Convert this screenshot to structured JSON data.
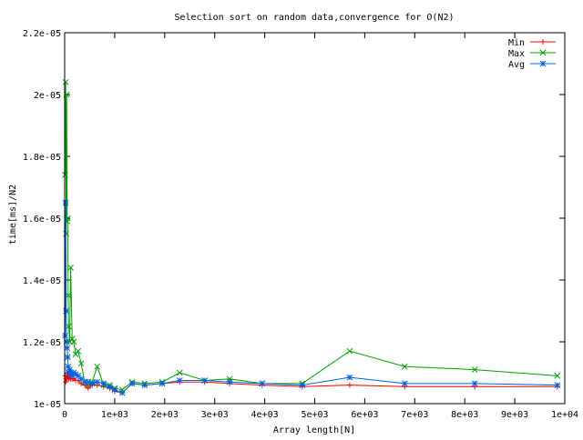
{
  "chart_data": {
    "type": "line",
    "title": "Selection sort on random data,convergence for O(N2)",
    "xlabel": "Array length[N]",
    "ylabel": "time[ms]/N2",
    "xlim": [
      0,
      10000
    ],
    "ylim": [
      1e-05,
      2.2e-05
    ],
    "xticks": [
      0,
      1000,
      2000,
      3000,
      4000,
      5000,
      6000,
      7000,
      8000,
      9000,
      10000
    ],
    "xtick_labels": [
      "0",
      "1e+03",
      "2e+03",
      "3e+03",
      "4e+03",
      "5e+03",
      "6e+03",
      "7e+03",
      "8e+03",
      "9e+03",
      "1e+04"
    ],
    "yticks": [
      1e-05,
      1.2e-05,
      1.4e-05,
      1.6e-05,
      1.8e-05,
      2e-05,
      2.2e-05
    ],
    "ytick_labels": [
      "1e-05",
      "1.2e-05",
      "1.4e-05",
      "1.6e-05",
      "1.8e-05",
      "2e-05",
      "2.2e-05"
    ],
    "grid": false,
    "legend_position": "top-right",
    "x": [
      10,
      20,
      30,
      40,
      50,
      60,
      70,
      80,
      100,
      120,
      150,
      180,
      220,
      270,
      330,
      400,
      470,
      550,
      650,
      780,
      900,
      1000,
      1150,
      1350,
      1600,
      1950,
      2300,
      2800,
      3300,
      3950,
      4750,
      5700,
      6800,
      8200,
      9850
    ],
    "series": [
      {
        "name": "Min",
        "color": "#ff0000",
        "marker": "plus",
        "values": [
          1.09e-05,
          1.07e-05,
          1.08e-05,
          1.1e-05,
          1.08e-05,
          1.09e-05,
          1.09e-05,
          1.08e-05,
          1.085e-05,
          1.08e-05,
          1.08e-05,
          1.08e-05,
          1.075e-05,
          1.075e-05,
          1.065e-05,
          1.06e-05,
          1.05e-05,
          1.06e-05,
          1.06e-05,
          1.055e-05,
          1.05e-05,
          1.04e-05,
          1.035e-05,
          1.065e-05,
          1.06e-05,
          1.065e-05,
          1.07e-05,
          1.07e-05,
          1.065e-05,
          1.06e-05,
          1.055e-05,
          1.06e-05,
          1.055e-05,
          1.055e-05,
          1.055e-05
        ]
      },
      {
        "name": "Max",
        "color": "#00a000",
        "marker": "cross",
        "values": [
          1.74e-05,
          2.04e-05,
          1.55e-05,
          2e-05,
          1.59e-05,
          1.6e-05,
          1.35e-05,
          1.25e-05,
          1.2e-05,
          1.44e-05,
          1.21e-05,
          1.2e-05,
          1.16e-05,
          1.17e-05,
          1.13e-05,
          1.07e-05,
          1.06e-05,
          1.07e-05,
          1.12e-05,
          1.06e-05,
          1.06e-05,
          1.05e-05,
          1.045e-05,
          1.07e-05,
          1.065e-05,
          1.07e-05,
          1.1e-05,
          1.075e-05,
          1.08e-05,
          1.065e-05,
          1.065e-05,
          1.17e-05,
          1.12e-05,
          1.11e-05,
          1.09e-05
        ]
      },
      {
        "name": "Avg",
        "color": "#0060e0",
        "marker": "star",
        "values": [
          1.22e-05,
          1.65e-05,
          1.3e-05,
          1.2e-05,
          1.18e-05,
          1.15e-05,
          1.12e-05,
          1.1e-05,
          1.11e-05,
          1.1e-05,
          1.09e-05,
          1.1e-05,
          1.095e-05,
          1.09e-05,
          1.08e-05,
          1.07e-05,
          1.07e-05,
          1.065e-05,
          1.07e-05,
          1.065e-05,
          1.055e-05,
          1.045e-05,
          1.035e-05,
          1.065e-05,
          1.06e-05,
          1.065e-05,
          1.075e-05,
          1.075e-05,
          1.07e-05,
          1.065e-05,
          1.06e-05,
          1.085e-05,
          1.065e-05,
          1.065e-05,
          1.06e-05
        ]
      }
    ]
  }
}
